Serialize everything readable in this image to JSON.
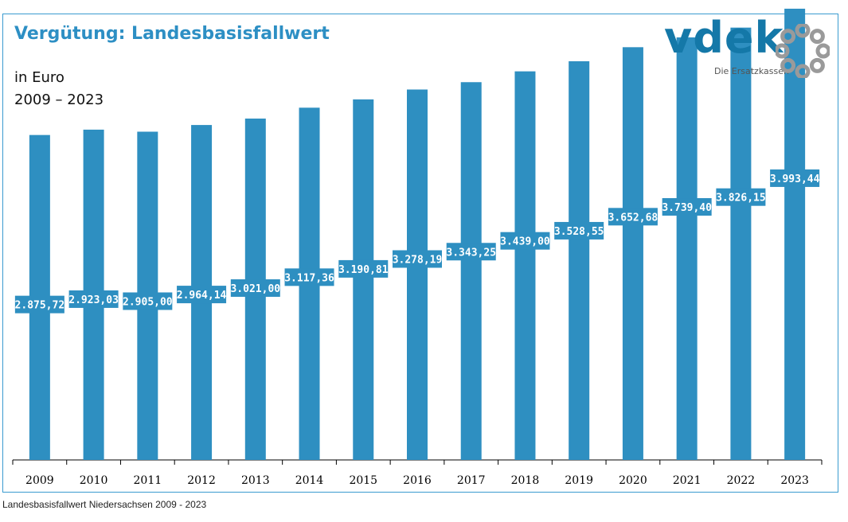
{
  "header": {
    "title": "Vergütung: Landesbasisfallwert",
    "unit": "in Euro",
    "period": "2009 – 2023"
  },
  "logo": {
    "wordmark": "vdek",
    "tagline": "Die Ersatzkassen"
  },
  "footer": {
    "caption": "Landesbasisfallwert Niedersachsen 2009 - 2023"
  },
  "colors": {
    "bar": "#2e8fc1",
    "title": "#2d8fc4",
    "frame": "#3a9bd0",
    "logo_blue": "#1478a8",
    "logo_gray": "#9a9a9a"
  },
  "chart_data": {
    "type": "bar",
    "title": "Vergütung: Landesbasisfallwert",
    "xlabel": "",
    "ylabel": "in Euro",
    "ylim": [
      0,
      4000
    ],
    "grid": false,
    "categories": [
      "2009",
      "2010",
      "2011",
      "2012",
      "2013",
      "2014",
      "2015",
      "2016",
      "2017",
      "2018",
      "2019",
      "2020",
      "2021",
      "2022",
      "2023"
    ],
    "values": [
      2875.72,
      2923.03,
      2905.0,
      2964.14,
      3021.0,
      3117.36,
      3190.81,
      3278.19,
      3343.25,
      3439.0,
      3528.55,
      3652.68,
      3739.4,
      3826.15,
      3993.44
    ],
    "labels": [
      "2.875,72",
      "2.923,03",
      "2.905,00",
      "2.964,14",
      "3.021,00",
      "3.117,36",
      "3.190,81",
      "3.278,19",
      "3.343,25",
      "3.439,00",
      "3.528,55",
      "3.652,68",
      "3.739,40",
      "3.826,15",
      "3.993,44"
    ]
  }
}
